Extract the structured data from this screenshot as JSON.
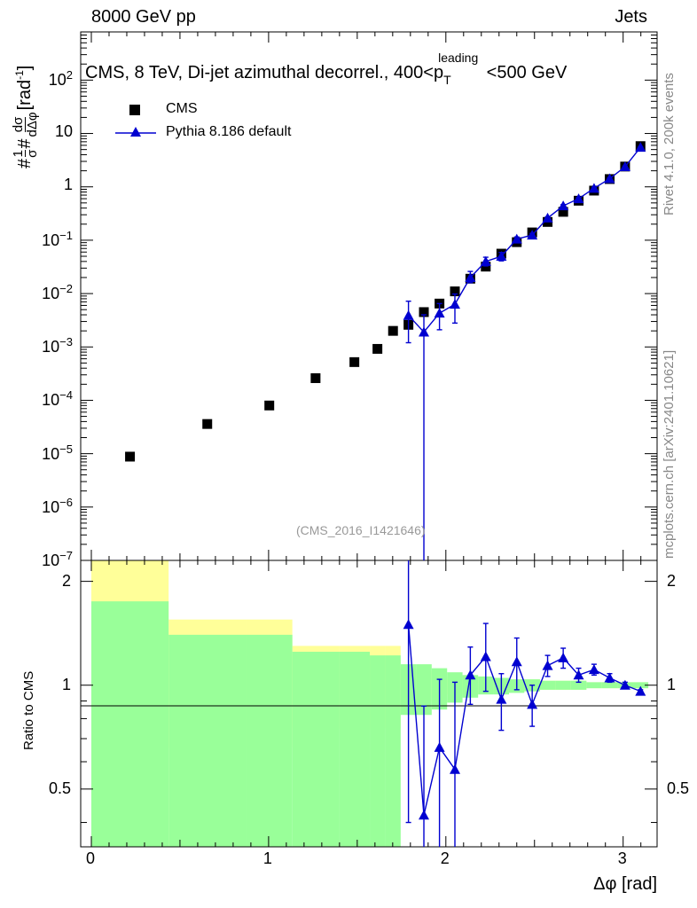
{
  "header": {
    "left": "8000 GeV pp",
    "right": "Jets"
  },
  "side": {
    "rivet": "Rivet 4.1.0,  200k events",
    "site": "mcplots.cern.ch [arXiv:2401.10621]"
  },
  "watermark": "(CMS_2016_I1421646)",
  "chart_data": [
    {
      "type": "scatter",
      "title": "CMS, 8 TeV, Di-jet azimuthal decorrel., 400<p_T^leading<500 GeV",
      "title_parts": {
        "main": "CMS, 8 TeV, Di-jet azimuthal decorrel., 400<p",
        "sub": "T",
        "sup": "leading",
        "tail": "<500 GeV"
      },
      "ylabel_parts": {
        "pre": "#",
        "frac1_num": "1",
        "frac1_den": "σ",
        "mid": "#",
        "frac2_num": "dσ",
        "frac2_den": "dΔφ",
        "unit": "[rad",
        "unit_sup": "-1",
        "unit_close": "]"
      },
      "xlabel": "Δφ [rad]",
      "yscale": "log",
      "xlim": [
        -0.06,
        3.1916
      ],
      "ylim": [
        1e-07,
        800
      ],
      "y_tick_labels": [
        {
          "v": 1e-07,
          "base": "10",
          "exp": "−7"
        },
        {
          "v": 1e-06,
          "base": "10",
          "exp": "−6"
        },
        {
          "v": 1e-05,
          "base": "10",
          "exp": "−5"
        },
        {
          "v": 0.0001,
          "base": "10",
          "exp": "−4"
        },
        {
          "v": 0.001,
          "base": "10",
          "exp": "−3"
        },
        {
          "v": 0.01,
          "base": "10",
          "exp": "−2"
        },
        {
          "v": 0.1,
          "base": "10",
          "exp": "−1"
        },
        {
          "v": 1,
          "base": "1",
          "exp": ""
        },
        {
          "v": 10,
          "base": "10",
          "exp": ""
        },
        {
          "v": 100,
          "base": "10",
          "exp": "2"
        }
      ],
      "legend": [
        {
          "name": "CMS",
          "marker": "square",
          "color": "#000000"
        },
        {
          "name": "Pythia 8.186 default",
          "marker": "triangle",
          "color": "#0000d0"
        }
      ],
      "bin_edges": [
        0,
        0.436,
        0.873,
        1.134,
        1.396,
        1.571,
        1.658,
        1.745,
        1.833,
        1.92,
        2.007,
        2.094,
        2.182,
        2.269,
        2.356,
        2.443,
        2.531,
        2.618,
        2.705,
        2.793,
        2.88,
        2.967,
        3.054,
        3.142
      ],
      "series": [
        {
          "name": "CMS",
          "x": [
            0.218,
            0.654,
            1.004,
            1.265,
            1.484,
            1.614,
            1.702,
            1.789,
            1.876,
            1.964,
            2.051,
            2.138,
            2.225,
            2.313,
            2.4,
            2.487,
            2.574,
            2.662,
            2.749,
            2.836,
            2.924,
            3.011,
            3.098
          ],
          "y": [
            8.8e-06,
            3.6e-05,
            8e-05,
            0.00026,
            0.00052,
            0.00092,
            0.002,
            0.0026,
            0.0045,
            0.0065,
            0.011,
            0.019,
            0.032,
            0.056,
            0.092,
            0.14,
            0.22,
            0.34,
            0.55,
            0.85,
            1.4,
            2.4,
            5.8
          ]
        },
        {
          "name": "Pythia 8.186 default",
          "x": [
            1.789,
            1.876,
            1.964,
            2.051,
            2.138,
            2.225,
            2.313,
            2.4,
            2.487,
            2.574,
            2.662,
            2.749,
            2.836,
            2.924,
            3.011,
            3.098
          ],
          "y": [
            0.0039,
            0.0019,
            0.0043,
            0.0063,
            0.02,
            0.04,
            0.05,
            0.105,
            0.125,
            0.26,
            0.44,
            0.6,
            0.94,
            1.42,
            2.38,
            5.5
          ],
          "err_lo": [
            0.0027,
            0.0019,
            0.0022,
            0.0035,
            0.004,
            0.007,
            0.009,
            0.01,
            0.009,
            0.015,
            0.025,
            0.03,
            0.04,
            0.05,
            0.07,
            0.1
          ],
          "err_hi": [
            0.0033,
            0.0021,
            0.0022,
            0.0035,
            0.006,
            0.008,
            0.009,
            0.01,
            0.009,
            0.015,
            0.025,
            0.03,
            0.04,
            0.05,
            0.07,
            0.1
          ]
        }
      ]
    },
    {
      "type": "scatter",
      "ylabel": "Ratio to CMS",
      "ylim": [
        0.34,
        2.3
      ],
      "y_tick_labels": [
        "0.5",
        "1",
        "2"
      ],
      "x_tick_labels": [
        "0",
        "1",
        "2",
        "3"
      ],
      "band_outer_lo": [
        0.34,
        0.66,
        0.66,
        0.75,
        0.75,
        0.75,
        0.75,
        0.9,
        0.9,
        0.94,
        0.94,
        0.94,
        0.95,
        0.95,
        0.96,
        0.96,
        0.97,
        0.97,
        0.97,
        0.98,
        0.98,
        0.98,
        0.98
      ],
      "band_outer_hi": [
        2.3,
        1.55,
        1.55,
        1.3,
        1.3,
        1.3,
        1.3,
        1.1,
        1.1,
        1.06,
        1.06,
        1.06,
        1.05,
        1.05,
        1.04,
        1.04,
        1.03,
        1.03,
        1.03,
        1.02,
        1.02,
        1.02,
        1.02
      ],
      "band_inner_lo": [
        0.34,
        0.34,
        0.34,
        0.34,
        0.34,
        0.34,
        0.34,
        0.82,
        0.82,
        0.85,
        0.89,
        0.92,
        0.94,
        0.94,
        0.95,
        0.96,
        0.97,
        0.97,
        0.97,
        0.98,
        0.98,
        0.98,
        0.98
      ],
      "band_inner_hi": [
        1.75,
        1.4,
        1.4,
        1.25,
        1.25,
        1.22,
        1.22,
        1.15,
        1.15,
        1.12,
        1.09,
        1.07,
        1.06,
        1.05,
        1.04,
        1.04,
        1.03,
        1.03,
        1.03,
        1.02,
        1.02,
        1.02,
        1.02
      ],
      "series": [
        {
          "name": "Pythia 8.186 default",
          "x": [
            1.789,
            1.876,
            1.964,
            2.051,
            2.138,
            2.225,
            2.313,
            2.4,
            2.487,
            2.574,
            2.662,
            2.749,
            2.836,
            2.924,
            3.011,
            3.098
          ],
          "y": [
            1.5,
            0.42,
            0.66,
            0.57,
            1.07,
            1.21,
            0.91,
            1.17,
            0.88,
            1.14,
            1.2,
            1.07,
            1.11,
            1.05,
            1.0,
            0.96
          ],
          "err_lo": [
            1.1,
            0.1,
            0.38,
            0.3,
            0.19,
            0.25,
            0.17,
            0.2,
            0.12,
            0.08,
            0.08,
            0.05,
            0.04,
            0.03,
            0.02,
            0.01
          ],
          "err_hi": [
            1.1,
            0.45,
            0.38,
            0.45,
            0.22,
            0.3,
            0.17,
            0.2,
            0.12,
            0.08,
            0.08,
            0.05,
            0.04,
            0.03,
            0.02,
            0.01
          ]
        }
      ]
    }
  ]
}
